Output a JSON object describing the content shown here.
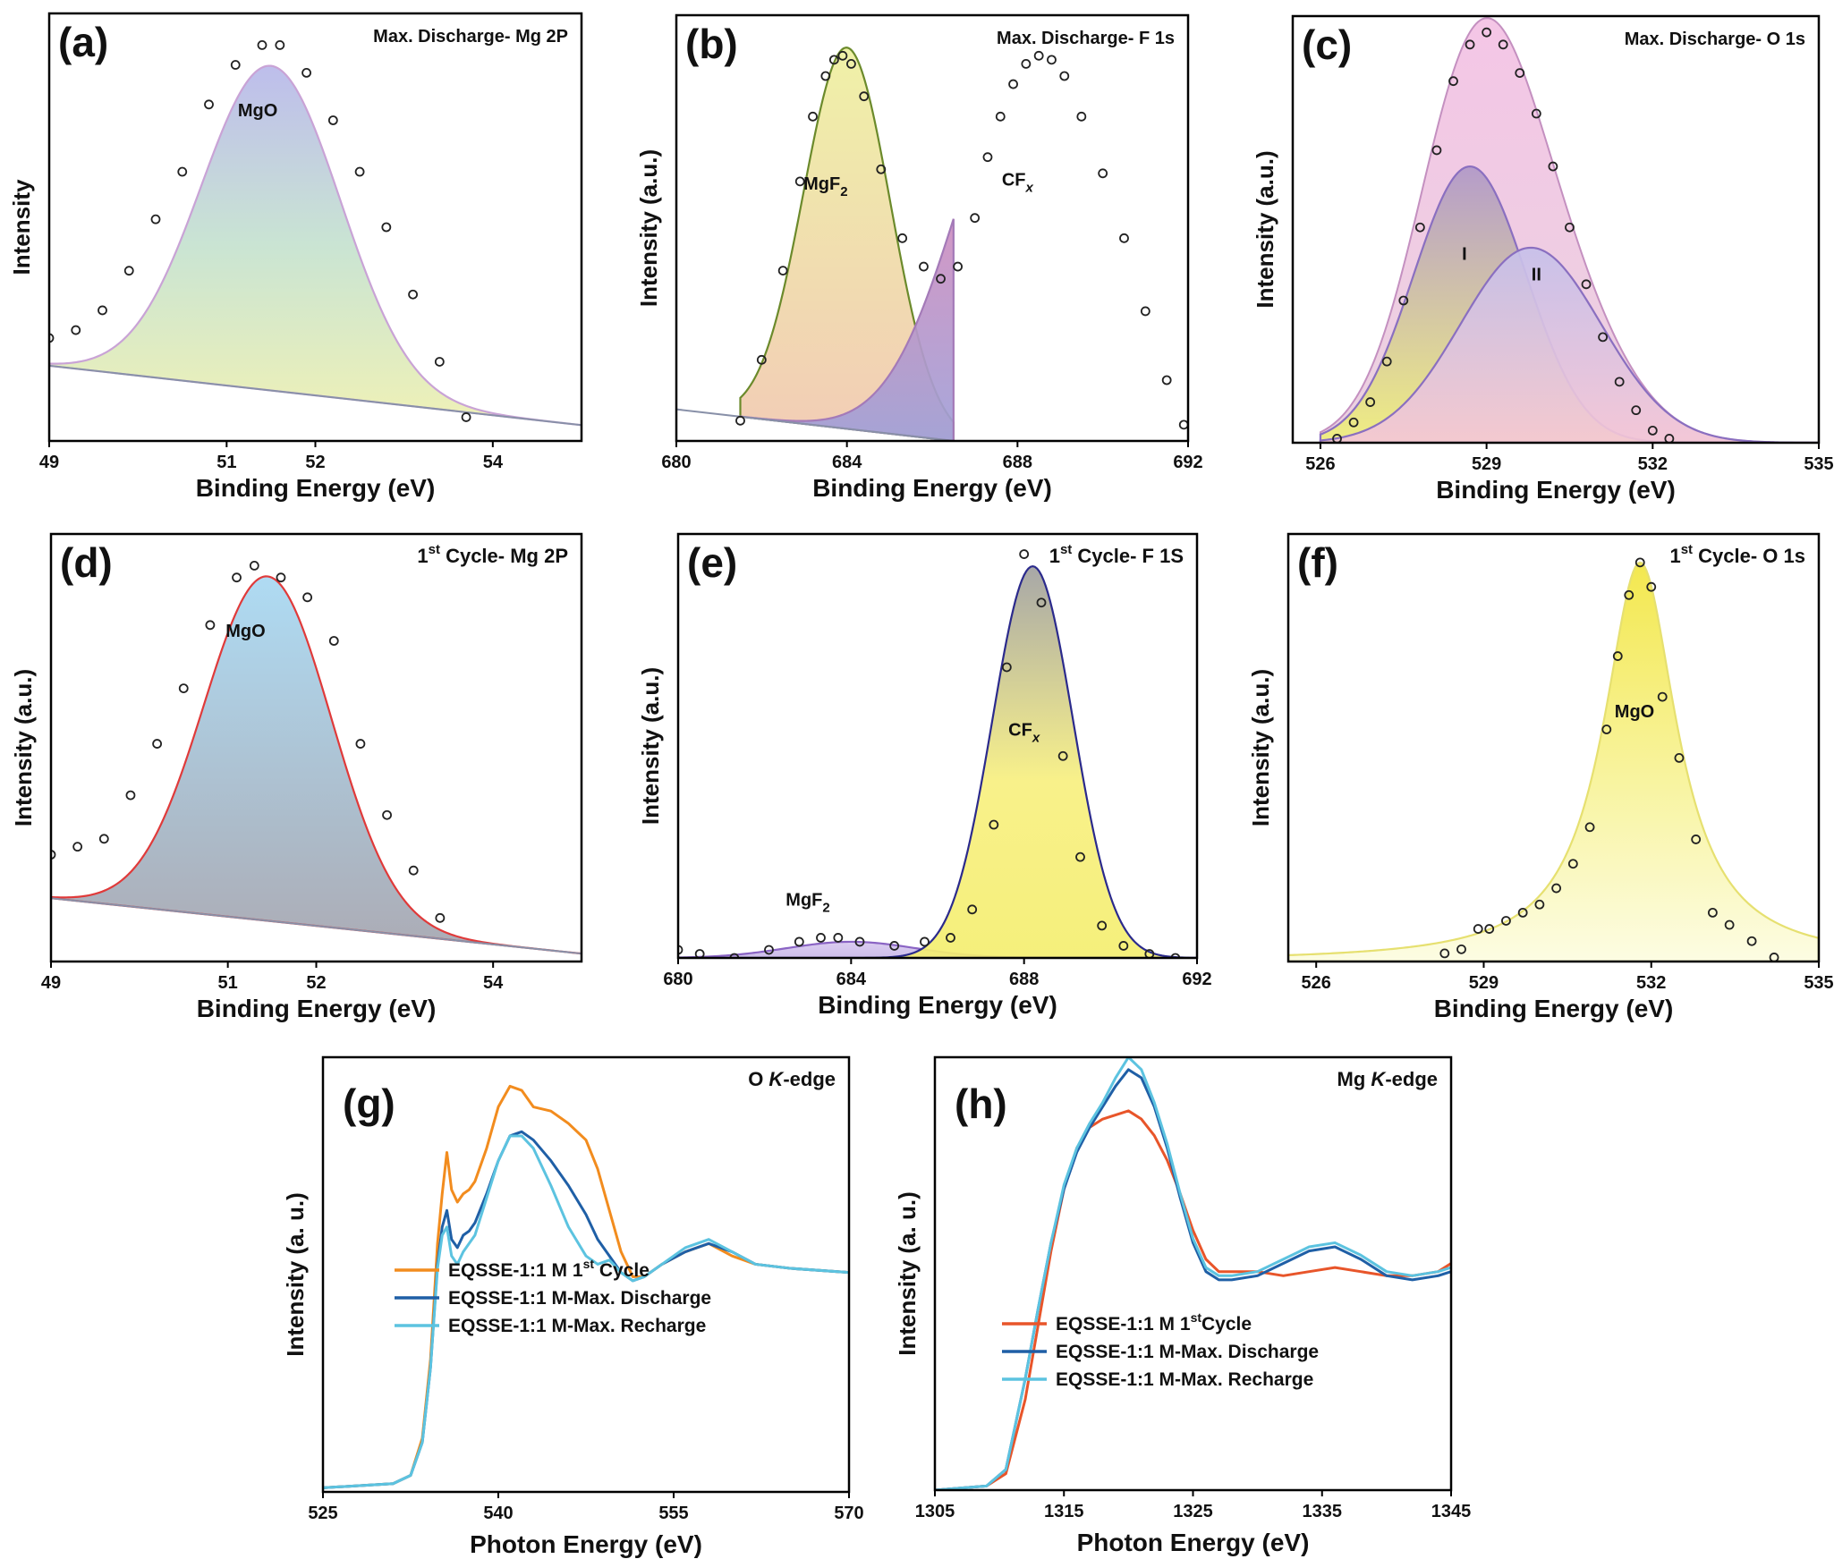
{
  "colors": {
    "frame": "#000000",
    "marker": "#222222",
    "orange": "#f28c1e",
    "red_orange": "#e8552a",
    "dark_blue": "#1f5fa6",
    "light_blue": "#5cc3e0",
    "violet": "#c49bd0",
    "red": "#e03a3a",
    "navy": "#2b2a8c",
    "olive": "#6b8a2b"
  },
  "chart_data": [
    {
      "id": "a",
      "type": "area",
      "panel_label": "(a)",
      "title": "Max. Discharge- Mg 2P",
      "xlabel": "Binding Energy (eV)",
      "ylabel": "Intensity",
      "xlim": [
        49,
        55
      ],
      "ylim": [
        0,
        1.08
      ],
      "xticks": [
        "49",
        "51",
        "52",
        "54"
      ],
      "baseline": [
        [
          49,
          0.19
        ],
        [
          55,
          0.04
        ]
      ],
      "peaks": [
        {
          "name": "MgO",
          "center": 51.5,
          "height": 0.82,
          "fwhm": 1.85,
          "label_x": 51.35,
          "label_y": 0.82
        }
      ],
      "points": {
        "x": [
          49.0,
          49.3,
          49.6,
          49.9,
          50.2,
          50.5,
          50.8,
          51.1,
          51.4,
          51.6,
          51.9,
          52.2,
          52.5,
          52.8,
          53.1,
          53.4,
          53.7
        ],
        "y": [
          0.26,
          0.28,
          0.33,
          0.43,
          0.56,
          0.68,
          0.85,
          0.95,
          1.0,
          1.0,
          0.93,
          0.81,
          0.68,
          0.54,
          0.37,
          0.2,
          0.06
        ]
      }
    },
    {
      "id": "b",
      "type": "area",
      "panel_label": "(b)",
      "title": "Max. Discharge- F 1s",
      "xlabel": "Binding Energy (eV)",
      "ylabel": "Intensity (a.u.)",
      "xlim": [
        680,
        692
      ],
      "ylim": [
        0,
        1.05
      ],
      "xticks": [
        "680",
        "684",
        "688",
        "692"
      ],
      "baseline": [
        [
          681.5,
          0.06
        ],
        [
          686.5,
          0.0
        ]
      ],
      "peaks": [
        {
          "name": "MgF",
          "sub": "2",
          "center": 684.0,
          "height": 0.94,
          "fwhm": 2.4,
          "label_x": 683.5,
          "label_y": 0.62
        },
        {
          "name": "CF",
          "sub": "X",
          "center": 688.3,
          "height": 0.96,
          "fwhm": 4.0,
          "label_x": 688.0,
          "label_y": 0.63
        }
      ],
      "points": {
        "x": [
          681.5,
          682.0,
          682.5,
          682.9,
          683.2,
          683.5,
          683.7,
          683.9,
          684.1,
          684.4,
          684.8,
          685.3,
          685.8,
          686.2,
          686.6,
          687.0,
          687.3,
          687.6,
          687.9,
          688.2,
          688.5,
          688.8,
          689.1,
          689.5,
          690.0,
          690.5,
          691.0,
          691.5,
          691.9
        ],
        "y": [
          0.05,
          0.2,
          0.42,
          0.64,
          0.8,
          0.9,
          0.94,
          0.95,
          0.93,
          0.85,
          0.67,
          0.5,
          0.43,
          0.4,
          0.43,
          0.55,
          0.7,
          0.8,
          0.88,
          0.93,
          0.95,
          0.94,
          0.9,
          0.8,
          0.66,
          0.5,
          0.32,
          0.15,
          0.04
        ]
      }
    },
    {
      "id": "c",
      "type": "area",
      "panel_label": "(c)",
      "title": "Max. Discharge- O 1s",
      "xlabel": "Binding Energy (eV)",
      "ylabel": "Intensity (a.u.)",
      "xlim": [
        525.5,
        535
      ],
      "ylim": [
        0,
        1.05
      ],
      "xticks": [
        "526",
        "529",
        "532",
        "535"
      ],
      "baseline": [
        [
          526.0,
          0.0
        ],
        [
          535.0,
          0.0
        ]
      ],
      "peaks": [
        {
          "name": "I",
          "center": 528.7,
          "height": 0.68,
          "fwhm": 2.4,
          "label_x": 528.6,
          "label_y": 0.45
        },
        {
          "name": "II",
          "center": 529.8,
          "height": 0.48,
          "fwhm": 3.0,
          "label_x": 529.9,
          "label_y": 0.4
        }
      ],
      "sum_fill": true,
      "points": {
        "x": [
          526.3,
          526.6,
          526.9,
          527.2,
          527.5,
          527.8,
          528.1,
          528.4,
          528.7,
          529.0,
          529.3,
          529.6,
          529.9,
          530.2,
          530.5,
          530.8,
          531.1,
          531.4,
          531.7,
          532.0,
          532.3
        ],
        "y": [
          0.01,
          0.05,
          0.1,
          0.2,
          0.35,
          0.53,
          0.72,
          0.89,
          0.98,
          1.01,
          0.98,
          0.91,
          0.81,
          0.68,
          0.53,
          0.39,
          0.26,
          0.15,
          0.08,
          0.03,
          0.01
        ]
      }
    },
    {
      "id": "d",
      "type": "area",
      "panel_label": "(d)",
      "title_main": "1",
      "title_sup": "st",
      "title_rest": " Cycle- Mg 2P",
      "xlabel": "Binding Energy (eV)",
      "ylabel": "Intensity (a.u.)",
      "xlim": [
        49,
        55
      ],
      "ylim": [
        0,
        1.08
      ],
      "xticks": [
        "49",
        "51",
        "52",
        "54"
      ],
      "baseline": [
        [
          49,
          0.16
        ],
        [
          55,
          0.02
        ]
      ],
      "peaks": [
        {
          "name": "MgO",
          "center": 51.45,
          "height": 0.87,
          "fwhm": 1.7,
          "label_x": 51.2,
          "label_y": 0.82
        }
      ],
      "points": {
        "x": [
          49.0,
          49.3,
          49.6,
          49.9,
          50.2,
          50.5,
          50.8,
          51.1,
          51.3,
          51.6,
          51.9,
          52.2,
          52.5,
          52.8,
          53.1,
          53.4
        ],
        "y": [
          0.27,
          0.29,
          0.31,
          0.42,
          0.55,
          0.69,
          0.85,
          0.97,
          1.0,
          0.97,
          0.92,
          0.81,
          0.55,
          0.37,
          0.23,
          0.11
        ]
      }
    },
    {
      "id": "e",
      "type": "area",
      "panel_label": "(e)",
      "title_main": "1",
      "title_sup": "st",
      "title_rest": " Cycle- F 1S",
      "xlabel": "Binding Energy (eV)",
      "ylabel": "Intensity (a.u.)",
      "xlim": [
        680,
        692
      ],
      "ylim": [
        0,
        1.05
      ],
      "xticks": [
        "680",
        "684",
        "688",
        "692"
      ],
      "baseline": [
        [
          680,
          0.0
        ],
        [
          692,
          0.0
        ]
      ],
      "peaks": [
        {
          "name": "MgF",
          "sub": "2",
          "center": 684.0,
          "height": 0.04,
          "fwhm": 3.5,
          "label_x": 683.0,
          "label_y": 0.13
        },
        {
          "name": "CF",
          "sub": "X",
          "center": 688.2,
          "height": 0.97,
          "fwhm": 2.2,
          "label_x": 688.0,
          "label_y": 0.55
        }
      ],
      "points": {
        "x": [
          680.0,
          680.5,
          681.3,
          682.1,
          682.8,
          683.3,
          683.7,
          684.2,
          685.0,
          685.7,
          686.3,
          686.8,
          687.3,
          687.6,
          688.0,
          688.4,
          688.9,
          689.3,
          689.8,
          690.3,
          690.9,
          691.5
        ],
        "y": [
          0.02,
          0.01,
          0.0,
          0.02,
          0.04,
          0.05,
          0.05,
          0.04,
          0.03,
          0.04,
          0.05,
          0.12,
          0.33,
          0.72,
          1.0,
          0.88,
          0.5,
          0.25,
          0.08,
          0.03,
          0.01,
          0.0
        ]
      }
    },
    {
      "id": "f",
      "type": "area",
      "panel_label": "(f)",
      "title_main": "1",
      "title_sup": "st",
      "title_rest": " Cycle- O 1s",
      "xlabel": "Binding Energy (eV)",
      "ylabel": "Intensity (a.u.)",
      "xlim": [
        525.5,
        535
      ],
      "ylim": [
        0,
        1.05
      ],
      "xticks": [
        "526",
        "529",
        "532",
        "535"
      ],
      "baseline": [
        [
          525.5,
          0.0
        ],
        [
          535,
          0.0
        ]
      ],
      "peaks": [
        {
          "name": "MgO",
          "center": 531.8,
          "height": 0.98,
          "fwhm": 1.6,
          "shape": "lorentz",
          "label_x": 531.7,
          "label_y": 0.6
        }
      ],
      "points": {
        "x": [
          528.3,
          528.6,
          528.9,
          529.1,
          529.4,
          529.7,
          530.0,
          530.3,
          530.6,
          530.9,
          531.2,
          531.4,
          531.6,
          531.8,
          532.0,
          532.2,
          532.5,
          532.8,
          533.1,
          533.4,
          533.8,
          534.2
        ],
        "y": [
          0.02,
          0.03,
          0.08,
          0.08,
          0.1,
          0.12,
          0.14,
          0.18,
          0.24,
          0.33,
          0.57,
          0.75,
          0.9,
          0.98,
          0.92,
          0.65,
          0.5,
          0.3,
          0.12,
          0.09,
          0.05,
          0.01
        ]
      }
    },
    {
      "id": "g",
      "type": "line",
      "panel_label": "(g)",
      "title_main": "O ",
      "title_italic": "K",
      "title_rest": "-edge",
      "xlabel": "Photon Energy (eV)",
      "ylabel": "Intensity (a. u.)",
      "xlim": [
        525,
        570
      ],
      "ylim": [
        0,
        1.05
      ],
      "xticks": [
        "525",
        "540",
        "555",
        "570"
      ],
      "legend": [
        {
          "main": "EQSSE-1:1 M 1",
          "sup": "st",
          "rest": " Cycle",
          "color": "#f28c1e"
        },
        {
          "main": "EQSSE-1:1 M-Max. Discharge",
          "color": "#1f5fa6"
        },
        {
          "main": "EQSSE-1:1 M-Max. Recharge",
          "color": "#5cc3e0"
        }
      ],
      "series": [
        {
          "name": "EQSSE-1:1 M 1st Cycle",
          "color": "#f28c1e",
          "x": [
            525,
            531,
            532.5,
            533.5,
            534.2,
            534.8,
            535.2,
            535.6,
            536.0,
            536.5,
            537.0,
            537.5,
            538.0,
            539.0,
            540.0,
            541.0,
            542.0,
            543.0,
            544.5,
            546.0,
            547.5,
            548.5,
            549.5,
            550.5,
            551.5,
            552.5,
            554.0,
            556.0,
            558.0,
            560.0,
            562.0,
            565.0,
            570.0
          ],
          "y": [
            0.01,
            0.02,
            0.04,
            0.13,
            0.32,
            0.6,
            0.72,
            0.82,
            0.73,
            0.7,
            0.72,
            0.73,
            0.75,
            0.83,
            0.93,
            0.98,
            0.97,
            0.93,
            0.92,
            0.89,
            0.85,
            0.78,
            0.68,
            0.58,
            0.52,
            0.52,
            0.55,
            0.58,
            0.6,
            0.57,
            0.55,
            0.54,
            0.53
          ]
        },
        {
          "name": "EQSSE-1:1 M-Max. Discharge",
          "color": "#1f5fa6",
          "x": [
            525,
            531,
            532.5,
            533.5,
            534.2,
            534.8,
            535.2,
            535.6,
            536.0,
            536.5,
            537.0,
            537.5,
            538.0,
            539.0,
            540.0,
            541.0,
            542.0,
            543.0,
            544.5,
            546.0,
            547.5,
            548.5,
            549.5,
            550.5,
            551.5,
            552.5,
            554.0,
            556.0,
            558.0,
            560.0,
            562.0,
            565.0,
            570.0
          ],
          "y": [
            0.01,
            0.02,
            0.04,
            0.12,
            0.3,
            0.55,
            0.64,
            0.68,
            0.61,
            0.59,
            0.62,
            0.63,
            0.65,
            0.72,
            0.8,
            0.86,
            0.87,
            0.85,
            0.8,
            0.74,
            0.67,
            0.61,
            0.57,
            0.53,
            0.51,
            0.52,
            0.55,
            0.58,
            0.6,
            0.58,
            0.55,
            0.54,
            0.53
          ]
        },
        {
          "name": "EQSSE-1:1 M-Max. Recharge",
          "color": "#5cc3e0",
          "x": [
            525,
            531,
            532.5,
            533.5,
            534.2,
            534.8,
            535.2,
            535.6,
            536.0,
            536.5,
            537.0,
            537.5,
            538.0,
            539.0,
            540.0,
            541.0,
            542.0,
            543.0,
            544.5,
            546.0,
            547.5,
            548.5,
            549.5,
            550.5,
            551.5,
            552.5,
            554.0,
            556.0,
            558.0,
            560.0,
            562.0,
            565.0,
            570.0
          ],
          "y": [
            0.01,
            0.02,
            0.04,
            0.12,
            0.3,
            0.54,
            0.62,
            0.64,
            0.57,
            0.55,
            0.58,
            0.6,
            0.62,
            0.71,
            0.8,
            0.86,
            0.86,
            0.83,
            0.74,
            0.64,
            0.57,
            0.55,
            0.56,
            0.53,
            0.51,
            0.52,
            0.55,
            0.59,
            0.61,
            0.58,
            0.55,
            0.54,
            0.53
          ]
        }
      ]
    },
    {
      "id": "h",
      "type": "line",
      "panel_label": "(h)",
      "title_main": "Mg ",
      "title_italic": "K",
      "title_rest": "-edge",
      "xlabel": "Photon Energy (eV)",
      "ylabel": "Intensity (a. u.)",
      "xlim": [
        1305,
        1345
      ],
      "ylim": [
        0,
        1.05
      ],
      "xticks": [
        "1305",
        "1315",
        "1325",
        "1335",
        "1345"
      ],
      "legend": [
        {
          "main": "EQSSE-1:1 M 1",
          "sup": "st",
          "rest": "Cycle",
          "color": "#e8552a"
        },
        {
          "main": "EQSSE-1:1 M-Max. Discharge",
          "color": "#1f5fa6"
        },
        {
          "main": "EQSSE-1:1 M-Max. Recharge",
          "color": "#5cc3e0"
        }
      ],
      "series": [
        {
          "name": "EQSSE-1:1 M 1stCycle",
          "color": "#e8552a",
          "x": [
            1305,
            1309,
            1310.5,
            1312,
            1313,
            1314,
            1315,
            1316,
            1317,
            1318,
            1319,
            1320,
            1321,
            1322,
            1323,
            1324,
            1325,
            1326,
            1327,
            1328,
            1330,
            1332,
            1334,
            1336,
            1338,
            1340,
            1342,
            1344,
            1345
          ],
          "y": [
            0.0,
            0.01,
            0.04,
            0.22,
            0.4,
            0.58,
            0.73,
            0.83,
            0.88,
            0.9,
            0.91,
            0.92,
            0.9,
            0.86,
            0.8,
            0.72,
            0.63,
            0.56,
            0.53,
            0.53,
            0.53,
            0.52,
            0.53,
            0.54,
            0.53,
            0.52,
            0.52,
            0.53,
            0.55
          ]
        },
        {
          "name": "EQSSE-1:1 M-Max. Discharge",
          "color": "#1f5fa6",
          "x": [
            1305,
            1309,
            1310.5,
            1312,
            1313,
            1314,
            1315,
            1316,
            1317,
            1318,
            1319,
            1320,
            1321,
            1322,
            1323,
            1324,
            1325,
            1326,
            1327,
            1328,
            1330,
            1332,
            1334,
            1336,
            1338,
            1340,
            1342,
            1344,
            1345
          ],
          "y": [
            0.0,
            0.01,
            0.05,
            0.27,
            0.44,
            0.6,
            0.73,
            0.82,
            0.88,
            0.93,
            0.98,
            1.02,
            1.0,
            0.93,
            0.83,
            0.71,
            0.6,
            0.53,
            0.51,
            0.51,
            0.52,
            0.55,
            0.58,
            0.59,
            0.56,
            0.52,
            0.51,
            0.52,
            0.53
          ]
        },
        {
          "name": "EQSSE-1:1 M-Max. Recharge",
          "color": "#5cc3e0",
          "x": [
            1305,
            1309,
            1310.5,
            1312,
            1313,
            1314,
            1315,
            1316,
            1317,
            1318,
            1319,
            1320,
            1321,
            1322,
            1323,
            1324,
            1325,
            1326,
            1327,
            1328,
            1330,
            1332,
            1334,
            1336,
            1338,
            1340,
            1342,
            1344,
            1345
          ],
          "y": [
            0.0,
            0.01,
            0.05,
            0.27,
            0.44,
            0.6,
            0.74,
            0.83,
            0.89,
            0.94,
            1.0,
            1.05,
            1.02,
            0.94,
            0.84,
            0.72,
            0.61,
            0.54,
            0.52,
            0.52,
            0.53,
            0.56,
            0.59,
            0.6,
            0.57,
            0.53,
            0.52,
            0.53,
            0.54
          ]
        }
      ]
    }
  ]
}
